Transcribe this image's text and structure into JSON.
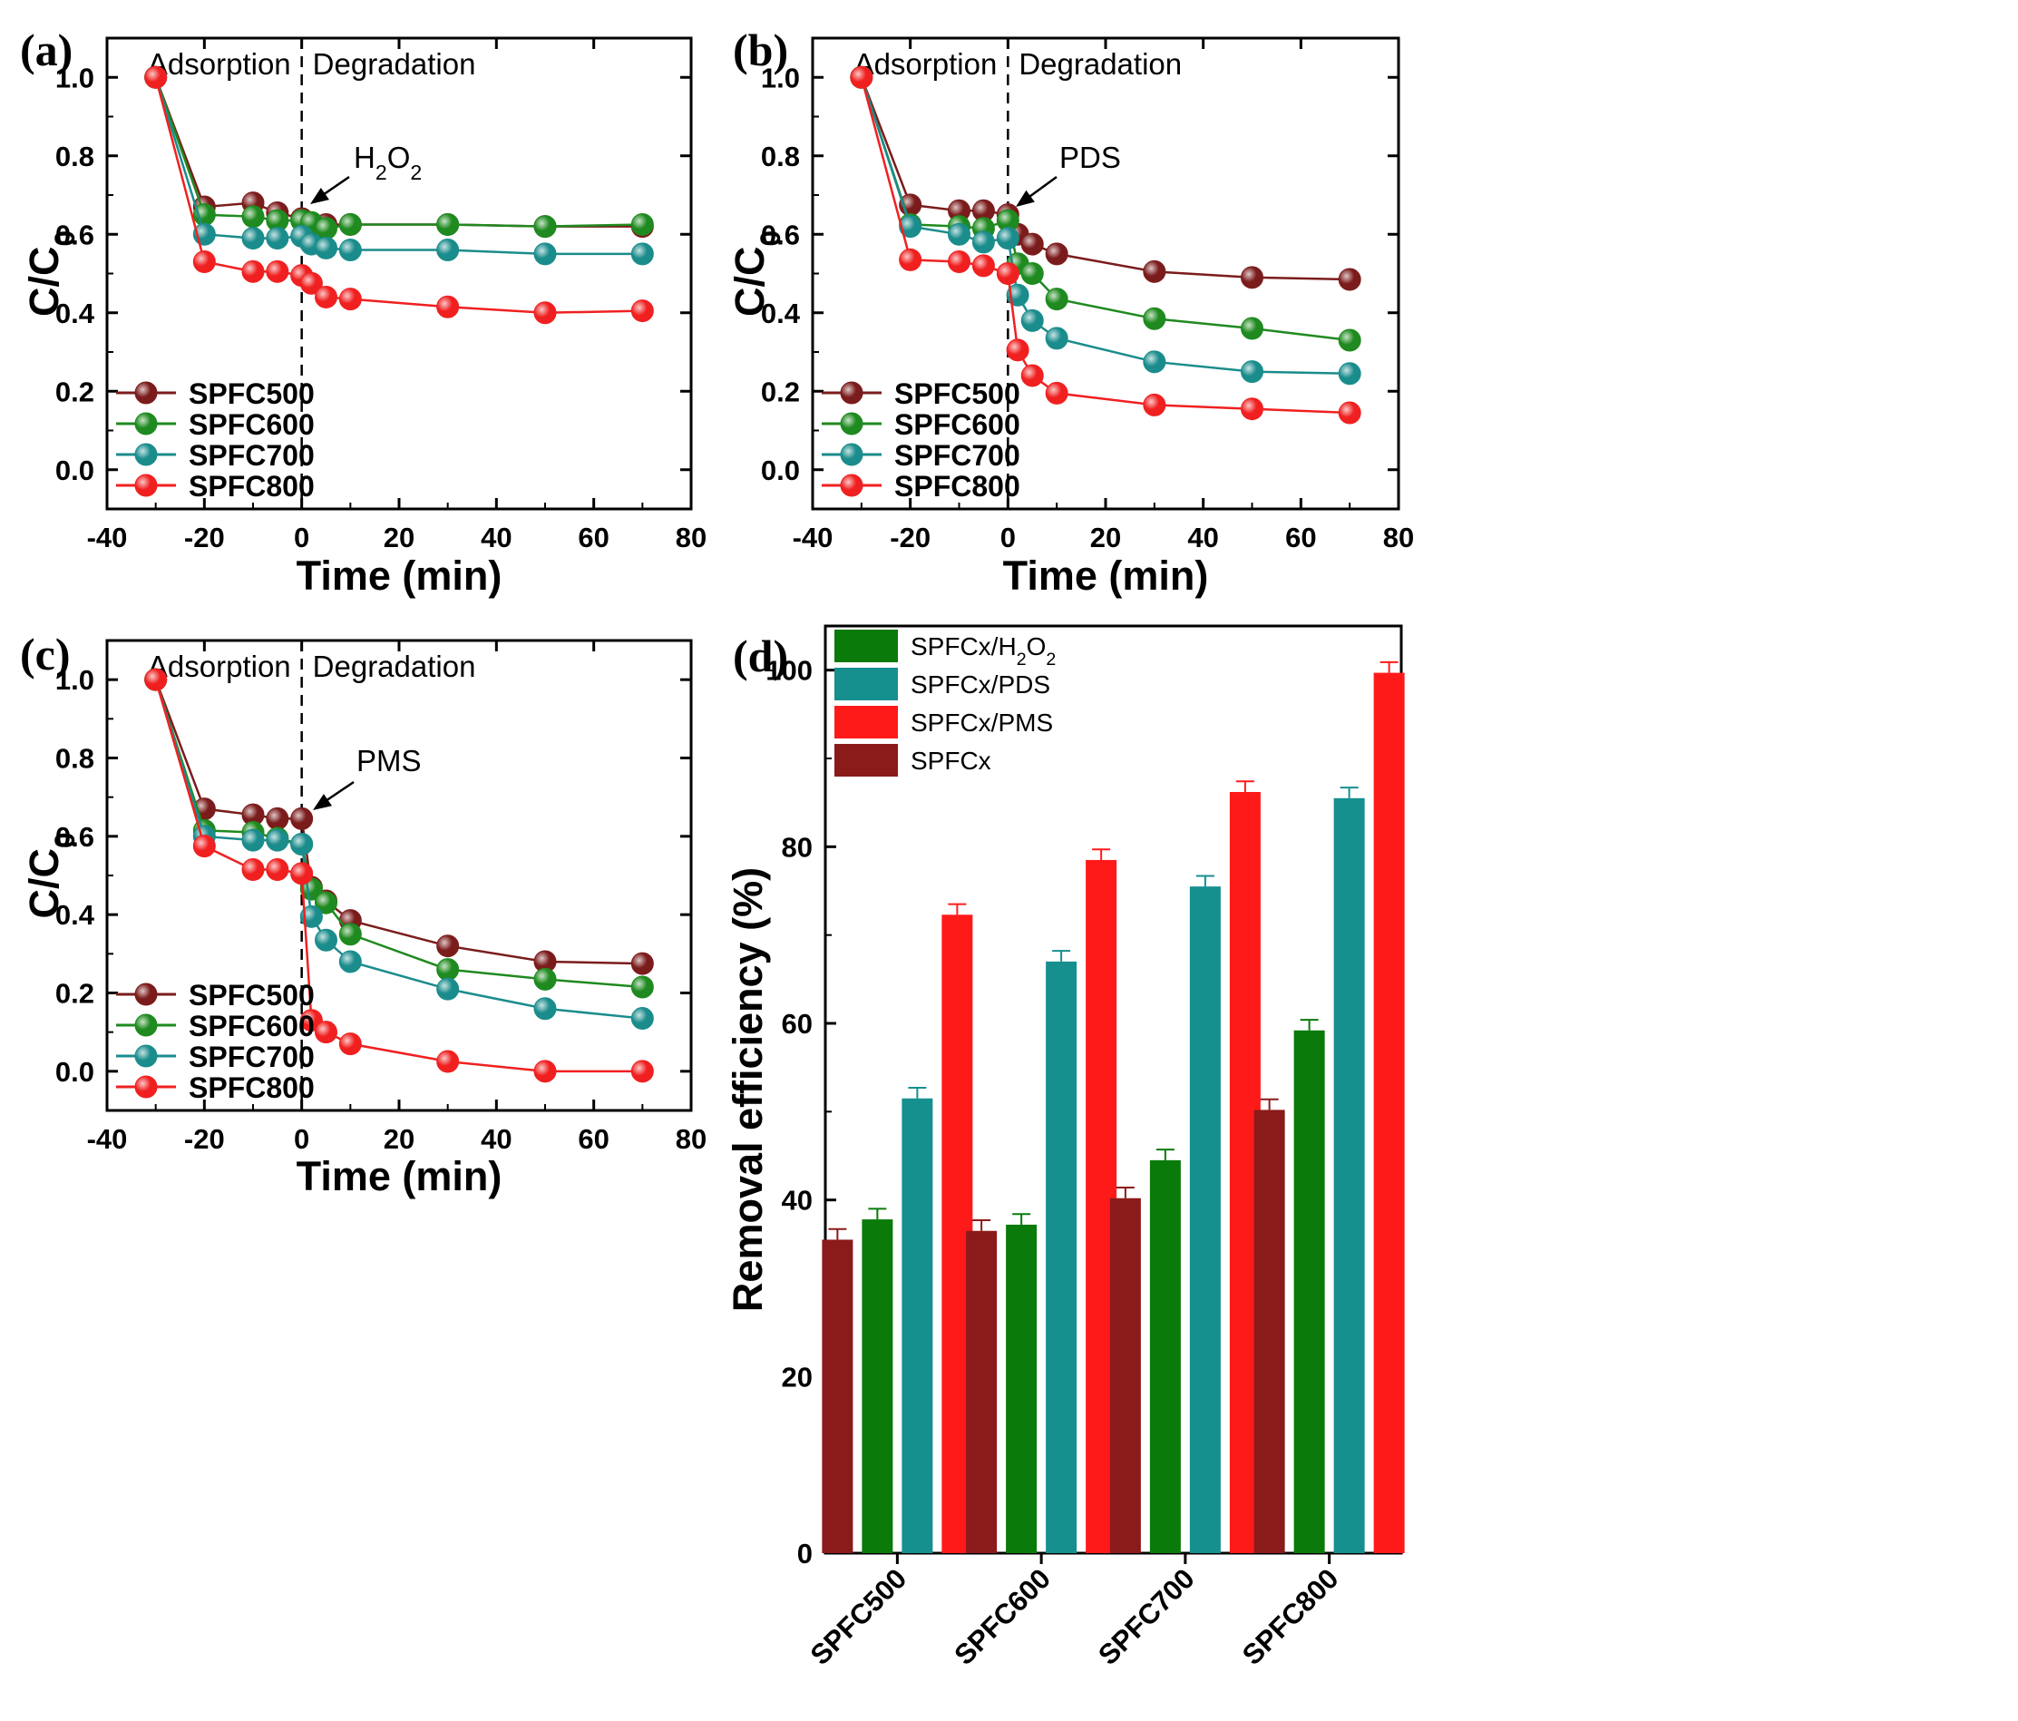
{
  "figure": {
    "panel_labels": [
      "(a)",
      "(b)",
      "(c)",
      "(d)"
    ]
  },
  "colors": {
    "SPFC500": "#7b1c1c",
    "SPFC600": "#1f8a1f",
    "SPFC700": "#1b8c8c",
    "SPFC800": "#f02020",
    "H2O2": "#0a7a0a",
    "PDS": "#168f8f",
    "PMS": "#ff1a1a",
    "SPFCx": "#8b1a1a"
  },
  "chart_data": [
    {
      "type": "line",
      "panel": "(a)",
      "xlabel": "Time (min)",
      "ylabel": "C/C0",
      "xlim": [
        -40,
        80
      ],
      "ylim": [
        -0.1,
        1.1
      ],
      "xticks": [
        "-40",
        "-20",
        "0",
        "20",
        "40",
        "60",
        "80"
      ],
      "yticks": [
        "0.0",
        "0.2",
        "0.4",
        "0.6",
        "0.8",
        "1.0"
      ],
      "phase_labels": [
        "Adsorption",
        "Degradation"
      ],
      "oxidant": "H2O2",
      "series": [
        {
          "name": "SPFC500",
          "x": [
            -30,
            -20,
            -10,
            -5,
            0,
            2,
            5,
            10,
            30,
            50,
            70
          ],
          "y": [
            1.0,
            0.67,
            0.68,
            0.655,
            0.64,
            0.625,
            0.625,
            0.625,
            0.625,
            0.62,
            0.62
          ]
        },
        {
          "name": "SPFC600",
          "x": [
            -30,
            -20,
            -10,
            -5,
            0,
            2,
            5,
            10,
            30,
            50,
            70
          ],
          "y": [
            1.0,
            0.65,
            0.645,
            0.635,
            0.635,
            0.63,
            0.615,
            0.625,
            0.625,
            0.62,
            0.625
          ]
        },
        {
          "name": "SPFC700",
          "x": [
            -30,
            -20,
            -10,
            -5,
            0,
            2,
            5,
            10,
            30,
            50,
            70
          ],
          "y": [
            1.0,
            0.6,
            0.59,
            0.59,
            0.595,
            0.575,
            0.565,
            0.56,
            0.56,
            0.55,
            0.55
          ]
        },
        {
          "name": "SPFC800",
          "x": [
            -30,
            -20,
            -10,
            -5,
            0,
            2,
            5,
            10,
            30,
            50,
            70
          ],
          "y": [
            1.0,
            0.53,
            0.505,
            0.505,
            0.495,
            0.475,
            0.44,
            0.435,
            0.415,
            0.4,
            0.405
          ]
        }
      ]
    },
    {
      "type": "line",
      "panel": "(b)",
      "xlabel": "Time (min)",
      "ylabel": "C/C0",
      "xlim": [
        -40,
        80
      ],
      "ylim": [
        -0.1,
        1.1
      ],
      "xticks": [
        "-40",
        "-20",
        "0",
        "20",
        "40",
        "60",
        "80"
      ],
      "yticks": [
        "0.0",
        "0.2",
        "0.4",
        "0.6",
        "0.8",
        "1.0"
      ],
      "phase_labels": [
        "Adsorption",
        "Degradation"
      ],
      "oxidant": "PDS",
      "series": [
        {
          "name": "SPFC500",
          "x": [
            -30,
            -20,
            -10,
            -5,
            0,
            2,
            5,
            10,
            30,
            50,
            70
          ],
          "y": [
            1.0,
            0.675,
            0.66,
            0.66,
            0.65,
            0.6,
            0.575,
            0.55,
            0.505,
            0.49,
            0.485
          ]
        },
        {
          "name": "SPFC600",
          "x": [
            -30,
            -20,
            -10,
            -5,
            0,
            2,
            5,
            10,
            30,
            50,
            70
          ],
          "y": [
            1.0,
            0.625,
            0.62,
            0.615,
            0.635,
            0.525,
            0.5,
            0.435,
            0.385,
            0.36,
            0.33
          ]
        },
        {
          "name": "SPFC700",
          "x": [
            -30,
            -20,
            -10,
            -5,
            0,
            2,
            5,
            10,
            30,
            50,
            70
          ],
          "y": [
            1.0,
            0.62,
            0.6,
            0.58,
            0.59,
            0.445,
            0.38,
            0.335,
            0.275,
            0.25,
            0.245
          ]
        },
        {
          "name": "SPFC800",
          "x": [
            -30,
            -20,
            -10,
            -5,
            0,
            2,
            5,
            10,
            30,
            50,
            70
          ],
          "y": [
            1.0,
            0.535,
            0.53,
            0.52,
            0.5,
            0.305,
            0.24,
            0.195,
            0.165,
            0.155,
            0.145
          ]
        }
      ]
    },
    {
      "type": "line",
      "panel": "(c)",
      "xlabel": "Time (min)",
      "ylabel": "C/C0",
      "xlim": [
        -40,
        80
      ],
      "ylim": [
        -0.1,
        1.1
      ],
      "xticks": [
        "-40",
        "-20",
        "0",
        "20",
        "40",
        "60",
        "80"
      ],
      "yticks": [
        "0.0",
        "0.2",
        "0.4",
        "0.6",
        "0.8",
        "1.0"
      ],
      "phase_labels": [
        "Adsorption",
        "Degradation"
      ],
      "oxidant": "PMS",
      "series": [
        {
          "name": "SPFC500",
          "x": [
            -30,
            -20,
            -10,
            -5,
            0,
            2,
            5,
            10,
            30,
            50,
            70
          ],
          "y": [
            1.0,
            0.67,
            0.655,
            0.645,
            0.645,
            0.47,
            0.435,
            0.385,
            0.32,
            0.28,
            0.275
          ]
        },
        {
          "name": "SPFC600",
          "x": [
            -30,
            -20,
            -10,
            -5,
            0,
            2,
            5,
            10,
            30,
            50,
            70
          ],
          "y": [
            1.0,
            0.615,
            0.61,
            0.595,
            0.58,
            0.465,
            0.43,
            0.35,
            0.26,
            0.235,
            0.215
          ]
        },
        {
          "name": "SPFC700",
          "x": [
            -30,
            -20,
            -10,
            -5,
            0,
            2,
            5,
            10,
            30,
            50,
            70
          ],
          "y": [
            1.0,
            0.6,
            0.59,
            0.59,
            0.58,
            0.395,
            0.335,
            0.28,
            0.21,
            0.16,
            0.135
          ]
        },
        {
          "name": "SPFC800",
          "x": [
            -30,
            -20,
            -10,
            -5,
            0,
            2,
            5,
            10,
            30,
            50,
            70
          ],
          "y": [
            1.0,
            0.575,
            0.515,
            0.515,
            0.505,
            0.13,
            0.1,
            0.07,
            0.025,
            0.0,
            0.0
          ]
        }
      ]
    },
    {
      "type": "bar",
      "panel": "(d)",
      "ylabel": "Removal efficiency (%)",
      "ylim": [
        0,
        105
      ],
      "yticks": [
        "0",
        "20",
        "40",
        "60",
        "80",
        "100"
      ],
      "categories": [
        "SPFC500",
        "SPFC600",
        "SPFC700",
        "SPFC800"
      ],
      "series": [
        {
          "name": "SPFCx",
          "values": [
            35.5,
            36.5,
            40.2,
            50.2
          ]
        },
        {
          "name": "SPFCx/H2O2",
          "values": [
            37.8,
            37.2,
            44.5,
            59.2
          ]
        },
        {
          "name": "SPFCx/PDS",
          "values": [
            51.5,
            67.0,
            75.5,
            85.5
          ]
        },
        {
          "name": "SPFCx/PMS",
          "values": [
            72.3,
            78.5,
            86.2,
            99.7
          ]
        }
      ],
      "legend": [
        "SPFCx/H2O2",
        "SPFCx/PDS",
        "SPFCx/PMS",
        "SPFCx"
      ]
    }
  ]
}
